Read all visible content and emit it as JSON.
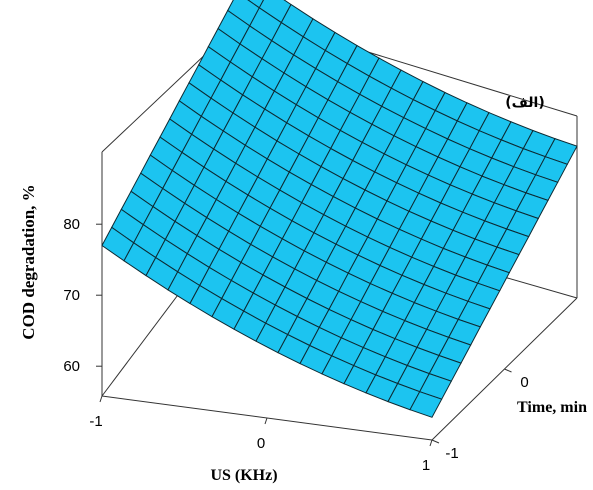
{
  "chart_data": {
    "type": "surface",
    "panel_label": "(الف)",
    "ylabel": "COD degradation, %",
    "xlabel": "US (KHz)",
    "zlabel": "Time, min",
    "x_ticks": [
      "-1",
      "0",
      "1"
    ],
    "z_ticks": [
      "-1",
      "0"
    ],
    "y_ticks": [
      "60",
      "70",
      "80"
    ],
    "y_range": [
      52,
      92
    ],
    "surface_color": "#1cc4f0",
    "corner_values": {
      "us_-1_time_-1": 77,
      "us_-1_time_1": 88,
      "us_1_time_-1": 59,
      "us_1_time_1": 70
    },
    "grid_size": 15
  }
}
